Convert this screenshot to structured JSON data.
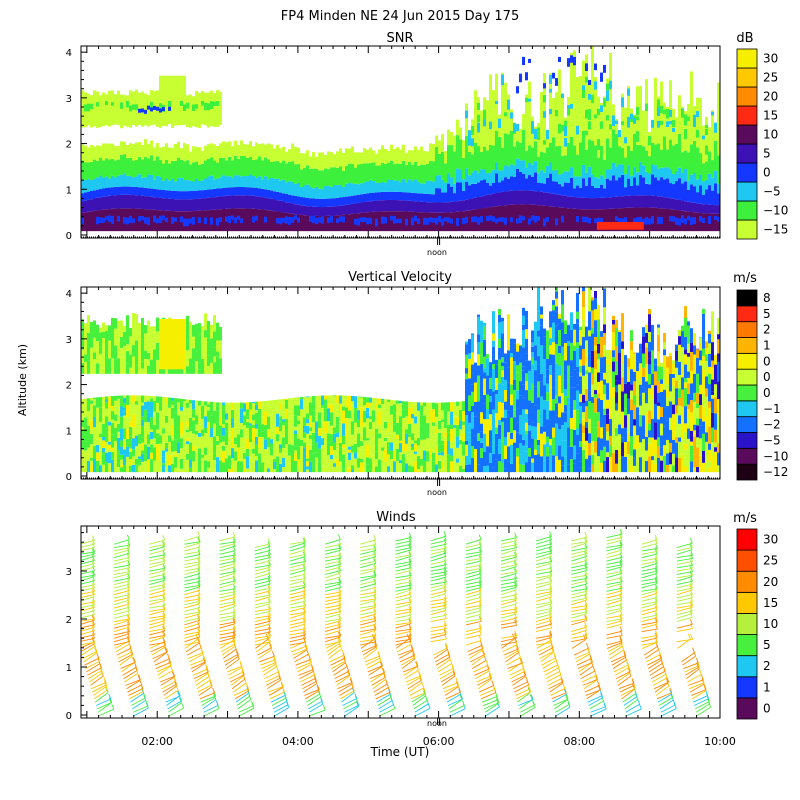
{
  "figure": {
    "title": "FP4 Minden NE  24 Jun 2015 Day 175",
    "ylabel": "Altitude (km)",
    "xlabel": "Time (UT)",
    "noon_label": "noon"
  },
  "colors": {
    "snr": [
      "#c8ff33",
      "#3cf03c",
      "#1ec8f0",
      "#1438ff",
      "#3c12b4",
      "#5a0a5a",
      "#ff2a14",
      "#ff8c00",
      "#ffc800",
      "#f6f000"
    ],
    "vv": [
      "#1e0014",
      "#5a0a5a",
      "#2a12c8",
      "#1470ff",
      "#1ec8f0",
      "#46f03c",
      "#c8ff33",
      "#f6f000",
      "#ffb400",
      "#ff7800",
      "#ff2a14",
      "#000000"
    ],
    "wind": [
      "#5a0a5a",
      "#1438ff",
      "#1ec8f0",
      "#46f03c",
      "#b4f03c",
      "#ffc800",
      "#ff8c00",
      "#ff5000",
      "#ff0000"
    ]
  },
  "chart_data": [
    {
      "type": "heatmap",
      "title": "SNR",
      "unit": "dB",
      "ylim": [
        0,
        4.2
      ],
      "yticks": [
        0,
        1,
        2,
        3,
        4
      ],
      "colorbar_labels": [
        "30",
        "25",
        "20",
        "15",
        "10",
        "5",
        "0",
        "−5",
        "−10",
        "−15"
      ],
      "layers": [
        {
          "from_time": "00:55",
          "to_time": "10:00",
          "bottom_km": 0.15,
          "top_km": 0.45,
          "level": "10"
        },
        {
          "from_time": "00:55",
          "to_time": "10:00",
          "bottom_km": 0.45,
          "top_km": 0.95,
          "level": "5"
        },
        {
          "from_time": "00:55",
          "to_time": "10:00",
          "bottom_km": 0.95,
          "top_km": 1.35,
          "level": "0"
        },
        {
          "from_time": "00:55",
          "to_time": "10:00",
          "bottom_km": 1.35,
          "top_km": 1.9,
          "level": "-10"
        },
        {
          "from_time": "00:55",
          "to_time": "02:50",
          "bottom_km": 2.4,
          "top_km": 3.2,
          "level": "-15"
        },
        {
          "from_time": "06:20",
          "to_time": "10:00",
          "bottom_km": 1.8,
          "top_km": 4.0,
          "level": "-15"
        },
        {
          "from_time": "08:15",
          "to_time": "08:55",
          "bottom_km": 0.2,
          "top_km": 0.35,
          "level": "15"
        }
      ]
    },
    {
      "type": "heatmap",
      "title": "Vertical Velocity",
      "unit": "m/s",
      "ylim": [
        0,
        4.2
      ],
      "yticks": [
        0,
        1,
        2,
        3,
        4
      ],
      "colorbar_labels": [
        "8",
        "5",
        "2",
        "1",
        "0",
        "0",
        "0",
        "−1",
        "−2",
        "−5",
        "−10",
        "−12"
      ],
      "layers": [
        {
          "from_time": "00:55",
          "to_time": "06:20",
          "bottom_km": 0.15,
          "top_km": 1.85,
          "level": "0"
        },
        {
          "from_time": "00:55",
          "to_time": "02:30",
          "bottom_km": 2.3,
          "top_km": 3.3,
          "level": "0"
        },
        {
          "from_time": "06:20",
          "to_time": "08:20",
          "bottom_km": 0.15,
          "top_km": 3.4,
          "level": "-1"
        },
        {
          "from_time": "07:00",
          "to_time": "10:00",
          "bottom_km": 0.15,
          "top_km": 4.0,
          "level": "1"
        }
      ]
    },
    {
      "type": "barbs",
      "title": "Winds",
      "unit": "m/s",
      "ylim": [
        0,
        4.0
      ],
      "yticks": [
        0,
        1,
        2,
        3
      ],
      "xlim": [
        "00:55",
        "10:00"
      ],
      "xticks": [
        "02:00",
        "04:00",
        "06:00",
        "08:00",
        "10:00"
      ],
      "colorbar_labels": [
        "30",
        "25",
        "20",
        "15",
        "10",
        "5",
        "2",
        "1",
        "0"
      ],
      "profiles": [
        "01:00",
        "01:30",
        "02:00",
        "02:30",
        "03:00",
        "03:30",
        "04:00",
        "04:30",
        "05:00",
        "05:30",
        "06:00",
        "06:30",
        "07:00",
        "07:30",
        "08:00",
        "08:30",
        "09:00",
        "09:30"
      ]
    }
  ]
}
